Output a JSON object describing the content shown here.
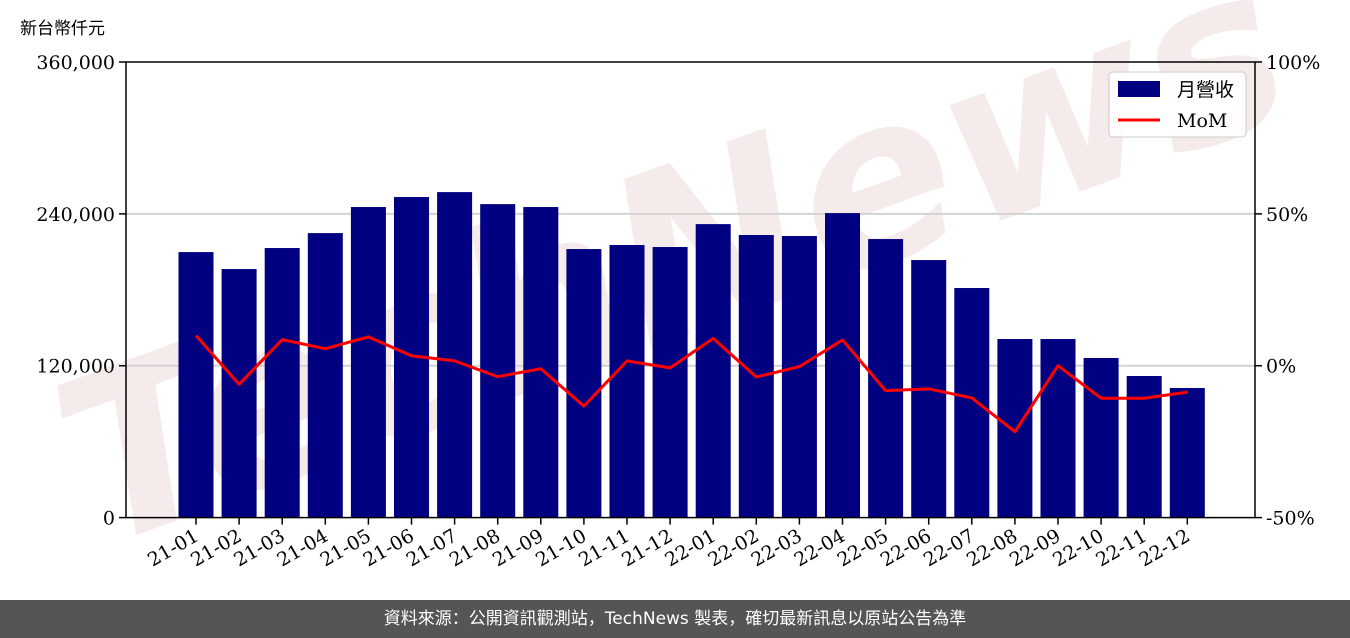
{
  "chart_data": {
    "type": "bar+line",
    "ylabel": "新台幣仟元",
    "categories": [
      "21-01",
      "21-02",
      "21-03",
      "21-04",
      "21-05",
      "21-06",
      "21-07",
      "21-08",
      "21-09",
      "21-10",
      "21-11",
      "21-12",
      "22-01",
      "22-02",
      "22-03",
      "22-04",
      "22-05",
      "22-06",
      "22-07",
      "22-08",
      "22-09",
      "22-10",
      "22-11",
      "22-12"
    ],
    "series": [
      {
        "name": "月營收",
        "type": "bar",
        "axis": "left",
        "color": "#000080",
        "values": [
          209800,
          196400,
          213000,
          224800,
          245400,
          253300,
          257200,
          247700,
          245400,
          212200,
          215400,
          213800,
          231900,
          223300,
          222500,
          240600,
          220100,
          203500,
          181400,
          141100,
          141100,
          126100,
          111900,
          102400
        ]
      },
      {
        "name": "MoM",
        "type": "line",
        "axis": "right",
        "color": "#ff0000",
        "values": [
          9.9,
          -6.1,
          8.6,
          5.6,
          9.5,
          3.3,
          1.6,
          -3.6,
          -1.0,
          -13.3,
          1.6,
          -0.7,
          9.0,
          -3.7,
          -0.3,
          8.5,
          -8.2,
          -7.6,
          -10.6,
          -21.7,
          0.0,
          -10.7,
          -10.7,
          -8.7
        ]
      }
    ],
    "left_axis": {
      "ylim": [
        0,
        360000
      ],
      "ticks": [
        0,
        120000,
        240000,
        360000
      ],
      "tick_labels": [
        "0",
        "120,000",
        "240,000",
        "360,000"
      ]
    },
    "right_axis": {
      "ylim": [
        -50,
        100
      ],
      "ticks": [
        -50,
        0,
        50,
        100
      ],
      "tick_labels": [
        "-50%",
        "0%",
        "50%",
        "100%"
      ]
    },
    "grid": "horizontal",
    "legend": "top-right"
  },
  "watermark": "TechNews",
  "footer": {
    "source": "資料來源：公開資訊觀測站，TechNews 製表，確切最新訊息以原站公告為準"
  }
}
